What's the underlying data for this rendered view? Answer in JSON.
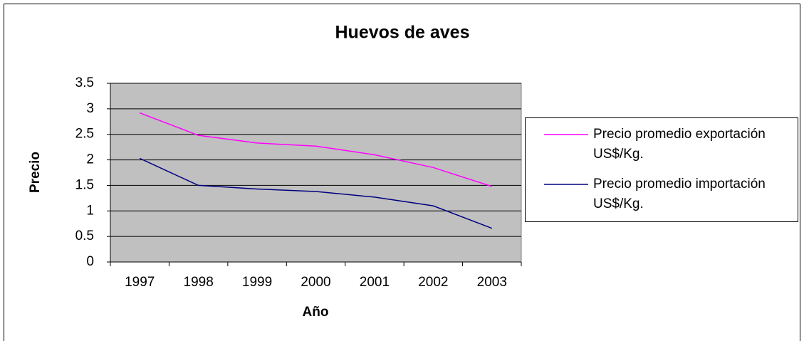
{
  "chart_data": {
    "type": "line",
    "title": "Huevos de aves",
    "x_label": "Año",
    "y_label": "Precio",
    "categories": [
      "1997",
      "1998",
      "1999",
      "2000",
      "2001",
      "2002",
      "2003"
    ],
    "series": [
      {
        "name": "Precio promedio exportación US$/Kg.",
        "color": "#ff00ff",
        "values": [
          2.92,
          2.48,
          2.33,
          2.27,
          2.1,
          1.85,
          1.48
        ]
      },
      {
        "name": "Precio promedio importación US$/Kg.",
        "color": "#000080",
        "values": [
          2.03,
          1.5,
          1.43,
          1.38,
          1.27,
          1.1,
          0.66
        ]
      }
    ],
    "ylim": [
      0,
      3.5
    ],
    "yticks": [
      0,
      0.5,
      1,
      1.5,
      2,
      2.5,
      3,
      3.5
    ],
    "grid": true,
    "legend": "right"
  }
}
